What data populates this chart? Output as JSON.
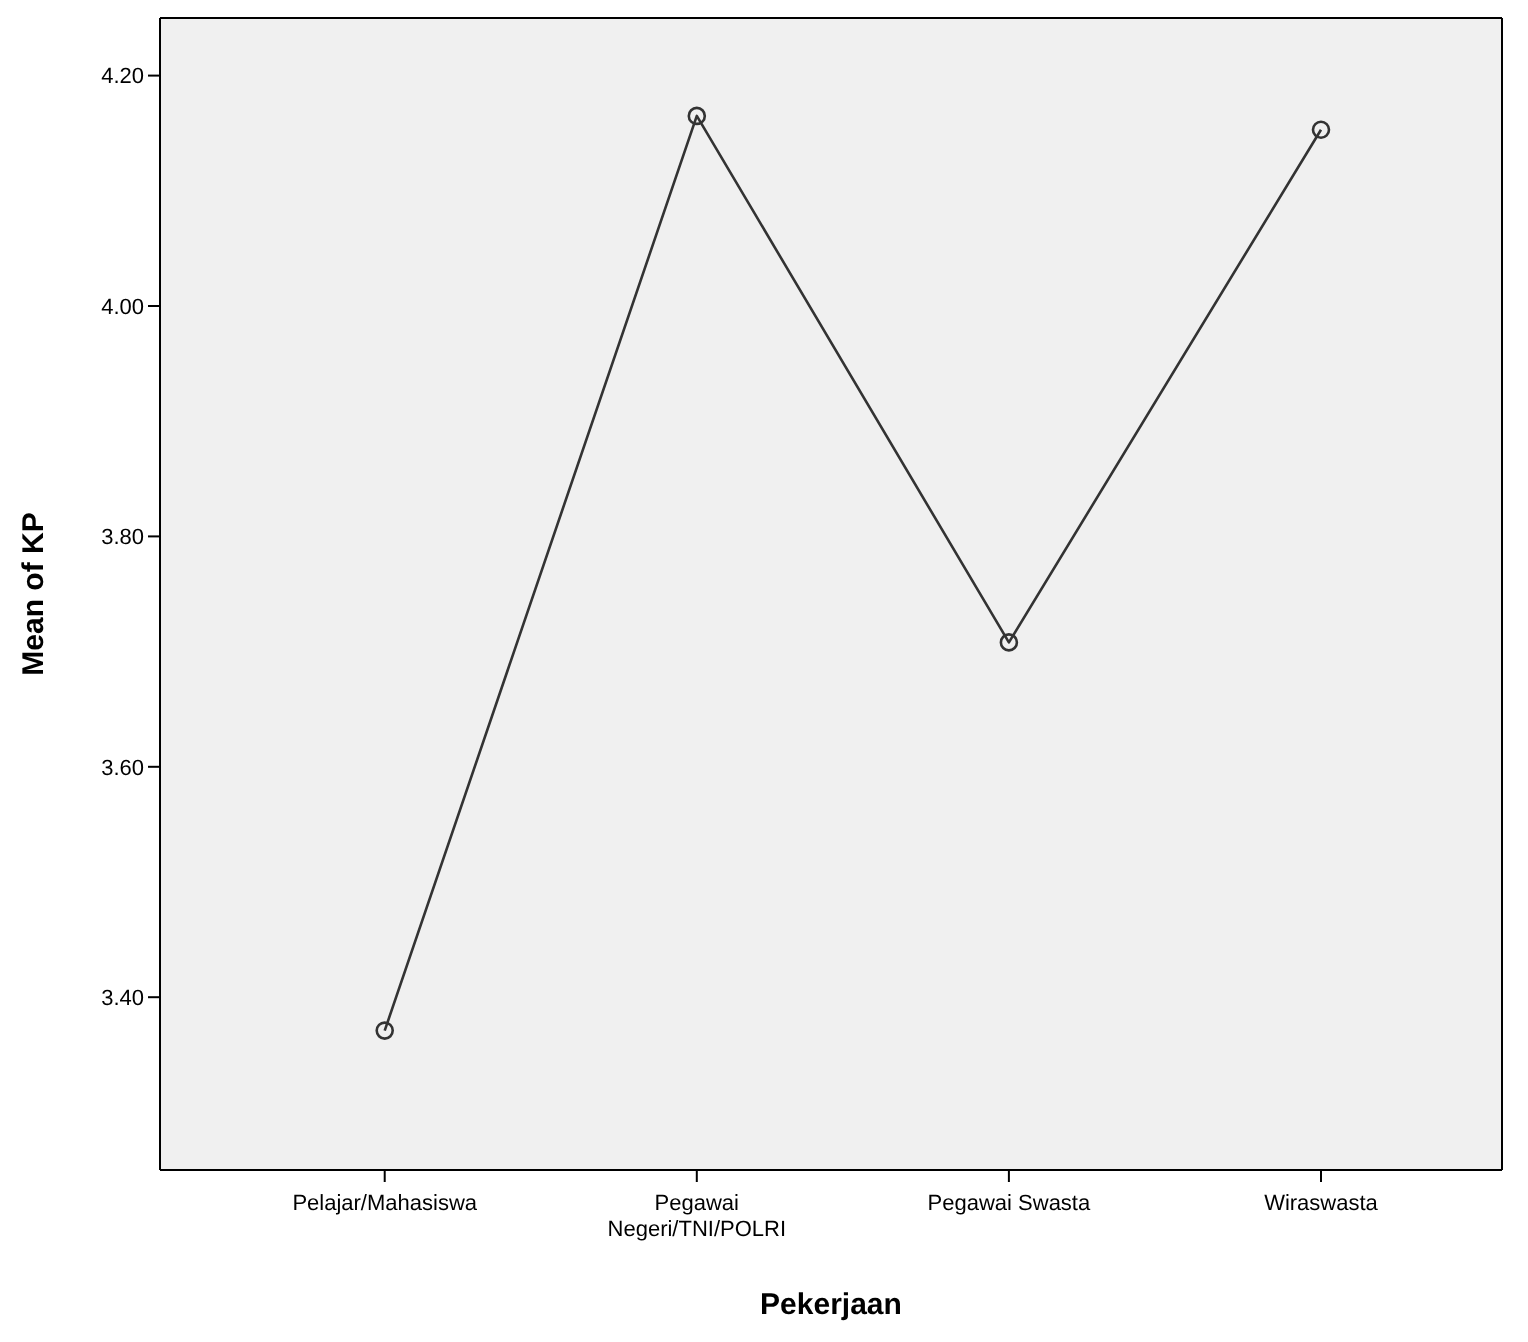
{
  "chart_data": {
    "type": "line",
    "xlabel": "Pekerjaan",
    "ylabel": "Mean of KP",
    "categories": [
      "Pelajar/Mahasiswa",
      "Pegawai Negeri/TNI/POLRI",
      "Pegawai Swasta",
      "Wiraswasta"
    ],
    "series": [
      {
        "color": "#333333",
        "values": [
          3.371,
          4.165,
          3.708,
          4.153
        ]
      }
    ],
    "ylim": [
      3.25,
      4.25
    ],
    "yticks": [
      {
        "value": 3.4,
        "label": "3.40"
      },
      {
        "value": 3.6,
        "label": "3.60"
      },
      {
        "value": 3.8,
        "label": "3.80"
      },
      {
        "value": 4.0,
        "label": "4.00"
      },
      {
        "value": 4.2,
        "label": "4.20"
      }
    ],
    "grid": false,
    "legend": false,
    "marker": "circle",
    "line_style": "solid"
  }
}
